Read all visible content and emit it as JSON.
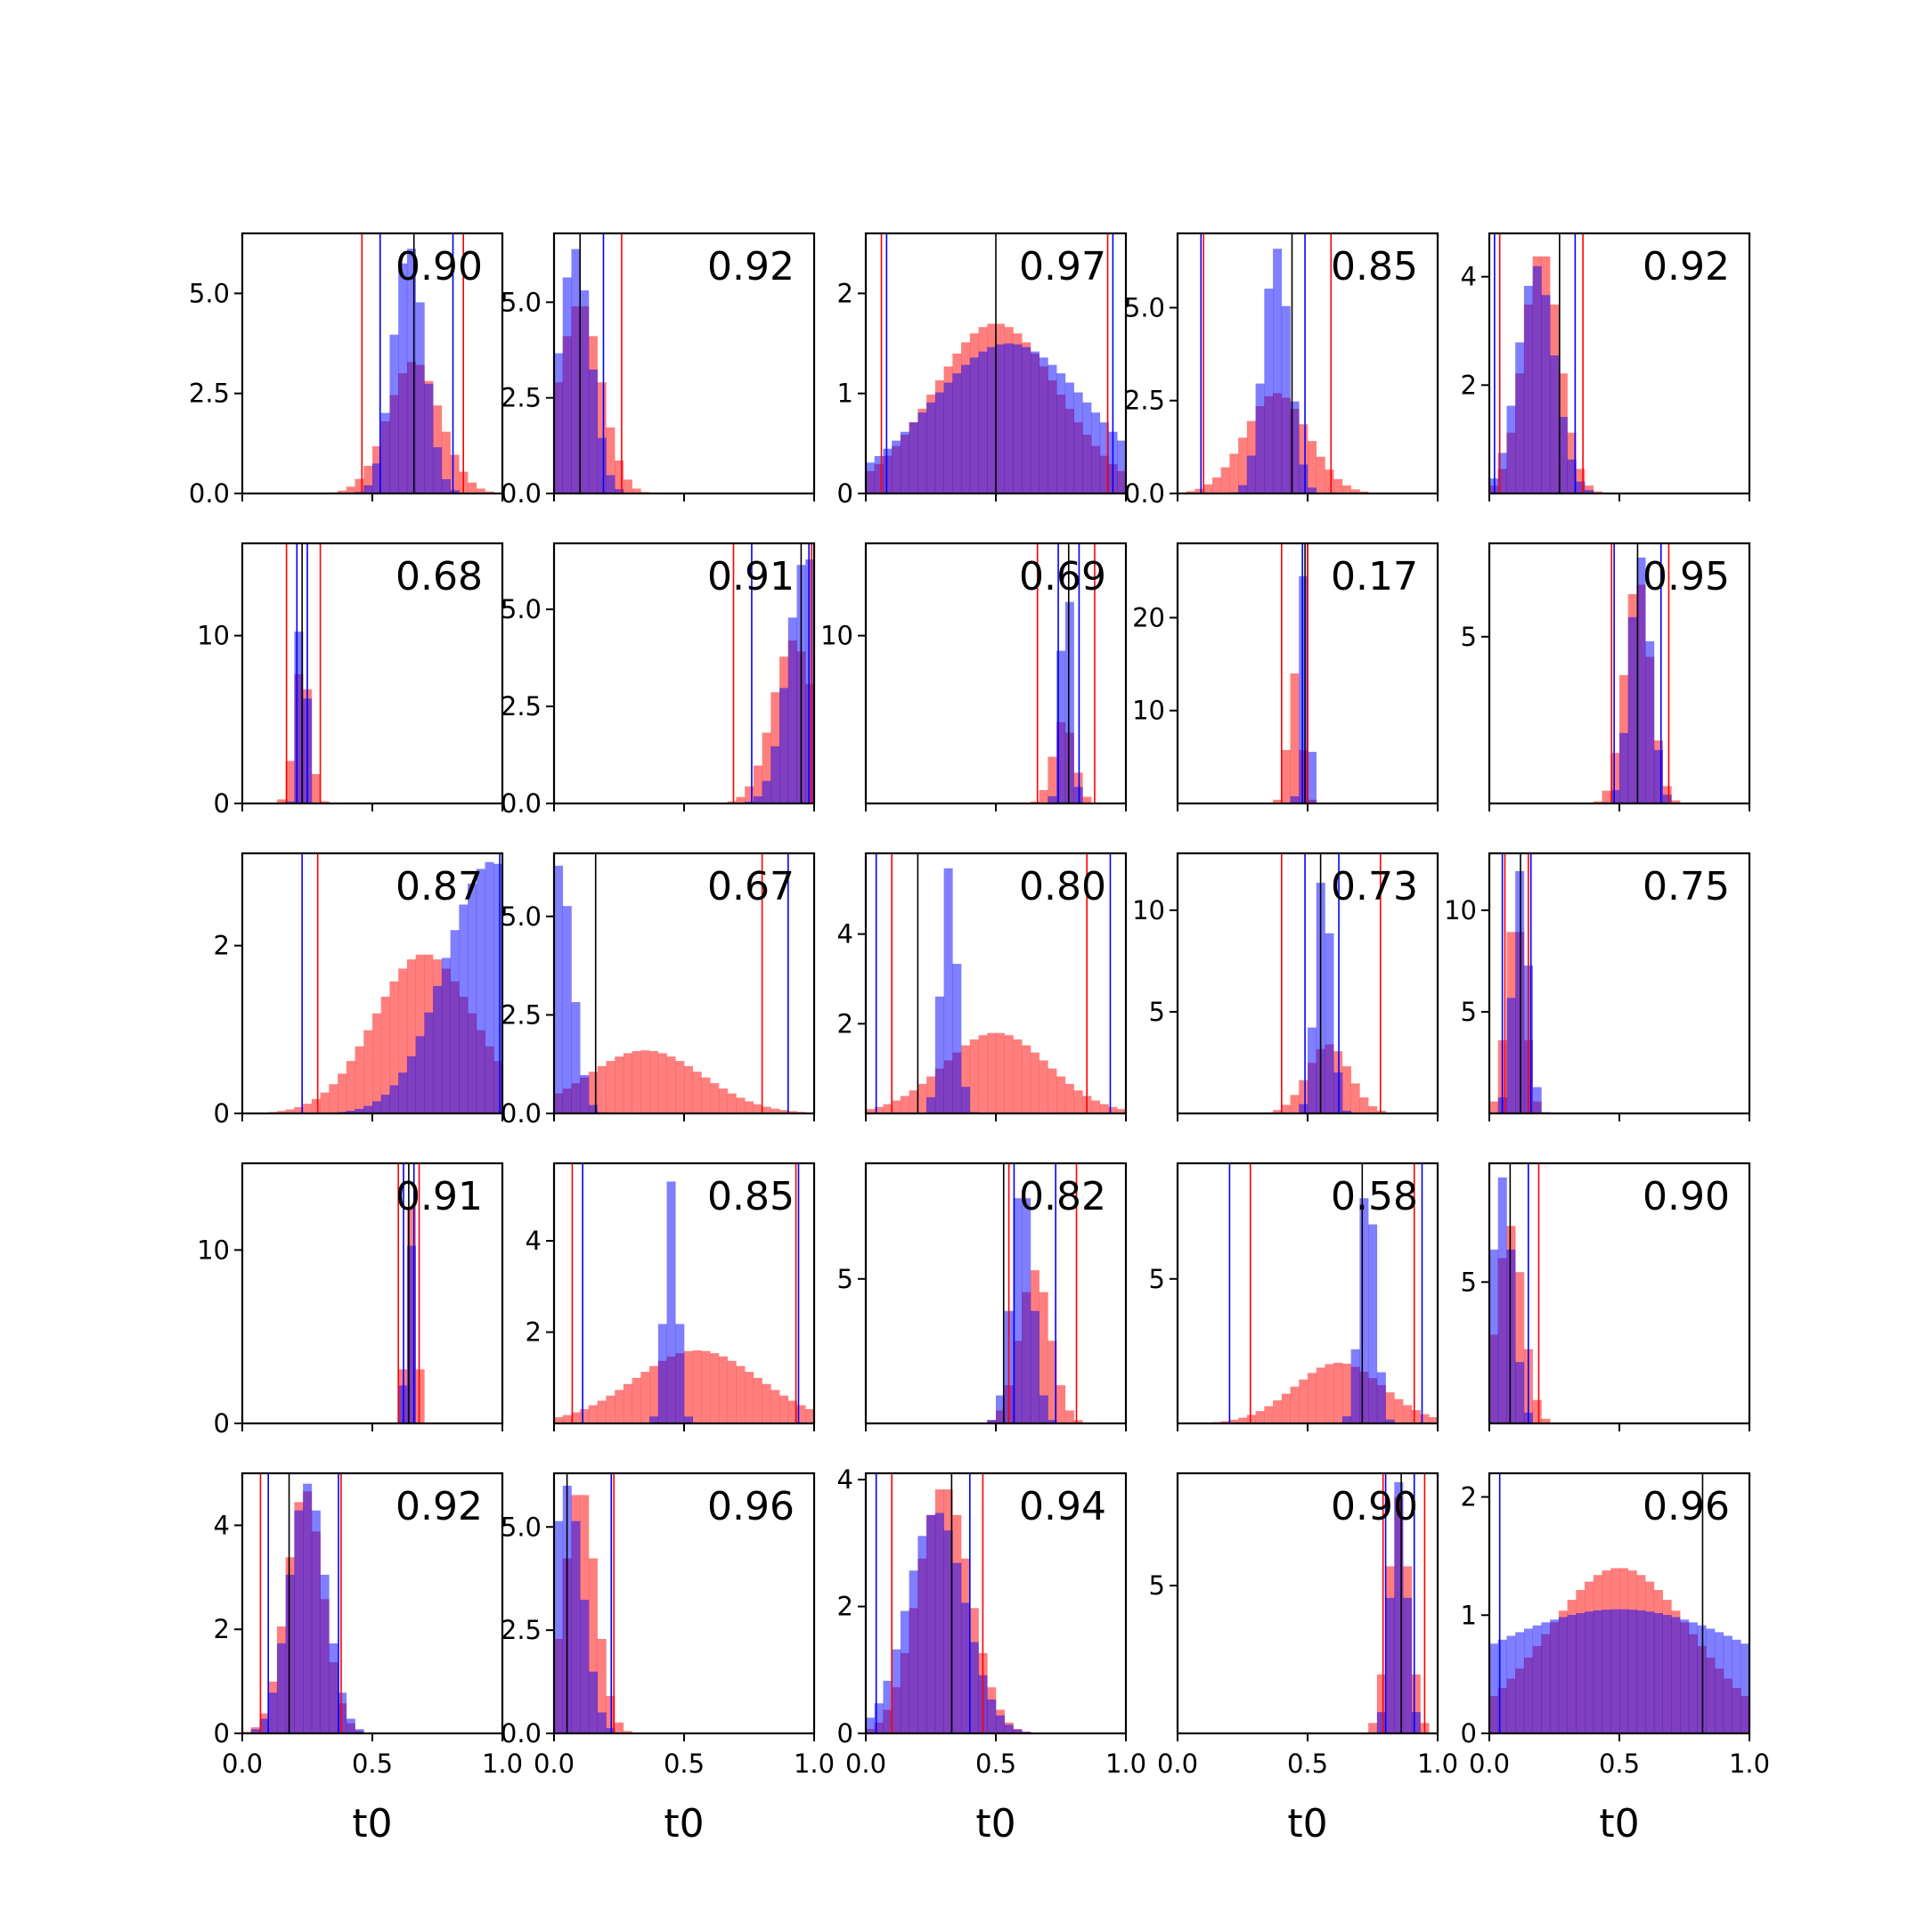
{
  "colors": {
    "series_a": "#0000ff",
    "series_b": "#ff0000",
    "marker": "#000000",
    "axes": "#000000"
  },
  "chart_data": {
    "type": "bar",
    "layout": "5x5 grid of overlaid histograms",
    "xlabel": "t0",
    "xlim": [
      0,
      1
    ],
    "xticks": [
      "0.0",
      "0.5",
      "1.0"
    ],
    "series_names": [
      "blue",
      "red"
    ],
    "panels": [
      {
        "score": "0.90",
        "ylim": [
          0,
          6.5
        ],
        "yticks": [
          "0.0",
          "2.5",
          "5.0"
        ],
        "blue_peak": 0.64,
        "blue_width": 0.06,
        "blue_height": 6.2,
        "red_peak": 0.66,
        "red_width": 0.1,
        "red_height": 3.3,
        "vlines": {
          "blue": [
            0.53,
            0.81
          ],
          "red": [
            0.46,
            0.85
          ],
          "black": [
            0.66
          ]
        }
      },
      {
        "score": "0.92",
        "ylim": [
          0,
          6.8
        ],
        "yticks": [
          "0.0",
          "2.5",
          "5.0"
        ],
        "blue_peak": 0.08,
        "blue_width": 0.06,
        "blue_height": 6.4,
        "red_peak": 0.1,
        "red_width": 0.08,
        "red_height": 5.0,
        "vlines": {
          "blue": [
            0.0,
            0.19
          ],
          "red": [
            0.0,
            0.26
          ],
          "black": [
            0.1
          ]
        }
      },
      {
        "score": "0.97",
        "ylim": [
          0,
          2.6
        ],
        "yticks": [
          "0",
          "1",
          "2"
        ],
        "blue_peak": 0.55,
        "blue_width": 0.3,
        "blue_height": 1.5,
        "red_peak": 0.5,
        "red_width": 0.24,
        "red_height": 1.7,
        "vlines": {
          "blue": [
            0.08,
            0.95
          ],
          "red": [
            0.06,
            0.93
          ],
          "black": [
            0.5
          ]
        }
      },
      {
        "score": "0.85",
        "ylim": [
          0,
          7.0
        ],
        "yticks": [
          "0.0",
          "2.5",
          "5.0"
        ],
        "blue_peak": 0.38,
        "blue_width": 0.05,
        "blue_height": 6.6,
        "red_peak": 0.38,
        "red_width": 0.12,
        "red_height": 2.7,
        "vlines": {
          "blue": [
            0.09,
            0.49
          ],
          "red": [
            0.1,
            0.59
          ],
          "black": [
            0.44
          ]
        }
      },
      {
        "score": "0.92",
        "ylim": [
          0,
          4.8
        ],
        "yticks": [
          "2",
          "4"
        ],
        "blue_peak": 0.18,
        "blue_width": 0.07,
        "blue_height": 4.2,
        "red_peak": 0.2,
        "red_width": 0.07,
        "red_height": 4.5,
        "vlines": {
          "blue": [
            0.02,
            0.33
          ],
          "red": [
            0.04,
            0.36
          ],
          "black": [
            0.27
          ]
        }
      },
      {
        "score": "0.68",
        "ylim": [
          0,
          15.5
        ],
        "yticks": [
          "0",
          "10"
        ],
        "blue_peak": 0.23,
        "blue_width": 0.015,
        "blue_height": 15.2,
        "red_peak": 0.23,
        "red_width": 0.03,
        "red_height": 8.5,
        "vlines": {
          "blue": [
            0.21,
            0.25
          ],
          "red": [
            0.17,
            0.3
          ],
          "black": [
            0.23
          ]
        }
      },
      {
        "score": "0.91",
        "ylim": [
          0,
          6.7
        ],
        "yticks": [
          "0.0",
          "2.5",
          "5.0"
        ],
        "blue_peak": 0.97,
        "blue_width": 0.07,
        "blue_height": 6.4,
        "red_peak": 0.92,
        "red_width": 0.08,
        "red_height": 4.2,
        "vlines": {
          "blue": [
            0.76,
            0.98
          ],
          "red": [
            0.69,
            0.99
          ],
          "black": [
            0.95
          ]
        }
      },
      {
        "score": "0.69",
        "ylim": [
          0,
          15.5
        ],
        "yticks": [
          "10"
        ],
        "blue_peak": 0.77,
        "blue_width": 0.02,
        "blue_height": 15.0,
        "red_peak": 0.76,
        "red_width": 0.04,
        "red_height": 5.0,
        "vlines": {
          "blue": [
            0.74,
            0.82
          ],
          "red": [
            0.66,
            0.88
          ],
          "black": [
            0.78
          ]
        }
      },
      {
        "score": "0.17",
        "ylim": [
          0,
          28
        ],
        "yticks": [
          "10",
          "20"
        ],
        "blue_peak": 0.49,
        "blue_width": 0.015,
        "blue_height": 27,
        "red_peak": 0.45,
        "red_width": 0.025,
        "red_height": 14,
        "vlines": {
          "blue": [
            0.48,
            0.5
          ],
          "red": [
            0.4,
            0.5
          ],
          "black": [
            0.49
          ]
        }
      },
      {
        "score": "0.95",
        "ylim": [
          0,
          7.8
        ],
        "yticks": [
          "5"
        ],
        "blue_peak": 0.58,
        "blue_width": 0.04,
        "blue_height": 7.4,
        "red_peak": 0.57,
        "red_width": 0.05,
        "red_height": 6.8,
        "vlines": {
          "blue": [
            0.48,
            0.66
          ],
          "red": [
            0.47,
            0.69
          ],
          "black": [
            0.57
          ]
        }
      },
      {
        "score": "0.87",
        "ylim": [
          0,
          3.1
        ],
        "yticks": [
          "0",
          "2"
        ],
        "blue_peak": 0.96,
        "blue_width": 0.18,
        "blue_height": 3.0,
        "red_peak": 0.7,
        "red_width": 0.19,
        "red_height": 1.9,
        "vlines": {
          "blue": [
            0.23,
            0.99
          ],
          "red": [
            0.29,
            1.0
          ],
          "black": []
        }
      },
      {
        "score": "0.67",
        "ylim": [
          0,
          6.6
        ],
        "yticks": [
          "0.0",
          "2.5",
          "5.0"
        ],
        "blue_peak": 0.02,
        "blue_width": 0.05,
        "blue_height": 6.3,
        "red_peak": 0.35,
        "red_width": 0.22,
        "red_height": 1.6,
        "vlines": {
          "blue": [
            0.0,
            0.9
          ],
          "red": [
            0.0,
            0.8
          ],
          "black": [
            0.16
          ]
        }
      },
      {
        "score": "0.80",
        "ylim": [
          0,
          5.8
        ],
        "yticks": [
          "2",
          "4"
        ],
        "blue_peak": 0.32,
        "blue_width": 0.03,
        "blue_height": 5.5,
        "red_peak": 0.5,
        "red_width": 0.2,
        "red_height": 1.8,
        "vlines": {
          "blue": [
            0.04,
            0.94
          ],
          "red": [
            0.1,
            0.85
          ],
          "black": [
            0.2
          ]
        }
      },
      {
        "score": "0.73",
        "ylim": [
          0,
          12.8
        ],
        "yticks": [
          "5",
          "10"
        ],
        "blue_peak": 0.56,
        "blue_width": 0.03,
        "blue_height": 12.0,
        "red_peak": 0.58,
        "red_width": 0.08,
        "red_height": 3.4,
        "vlines": {
          "blue": [
            0.49,
            0.62
          ],
          "red": [
            0.4,
            0.78
          ],
          "black": [
            0.55
          ]
        }
      },
      {
        "score": "0.75",
        "ylim": [
          0,
          12.8
        ],
        "yticks": [
          "5",
          "10"
        ],
        "blue_peak": 0.12,
        "blue_width": 0.03,
        "blue_height": 12.0,
        "red_peak": 0.1,
        "red_width": 0.035,
        "red_height": 10.0,
        "vlines": {
          "blue": [
            0.05,
            0.16
          ],
          "red": [
            0.06,
            0.15
          ],
          "black": [
            0.12
          ]
        }
      },
      {
        "score": "0.91",
        "ylim": [
          0,
          15
        ],
        "yticks": [
          "0",
          "10"
        ],
        "blue_peak": 0.64,
        "blue_width": 0.012,
        "blue_height": 14.5,
        "red_peak": 0.65,
        "red_width": 0.02,
        "red_height": 12.5,
        "vlines": {
          "blue": [
            0.62,
            0.66
          ],
          "red": [
            0.6,
            0.68
          ],
          "black": [
            0.64
          ]
        }
      },
      {
        "score": "0.85",
        "ylim": [
          0,
          5.7
        ],
        "yticks": [
          "2",
          "4"
        ],
        "blue_peak": 0.45,
        "blue_width": 0.025,
        "blue_height": 5.3,
        "red_peak": 0.55,
        "red_width": 0.24,
        "red_height": 1.6,
        "vlines": {
          "blue": [
            0.11,
            0.94
          ],
          "red": [
            0.07,
            0.93
          ],
          "black": []
        }
      },
      {
        "score": "0.82",
        "ylim": [
          0,
          9.0
        ],
        "yticks": [
          "5"
        ],
        "blue_peak": 0.6,
        "blue_width": 0.04,
        "blue_height": 8.5,
        "red_peak": 0.65,
        "red_width": 0.06,
        "red_height": 5.3,
        "vlines": {
          "blue": [
            0.57,
            0.73
          ],
          "red": [
            0.55,
            0.81
          ],
          "black": [
            0.53
          ]
        }
      },
      {
        "score": "0.58",
        "ylim": [
          0,
          9.0
        ],
        "yticks": [
          "5"
        ],
        "blue_peak": 0.73,
        "blue_width": 0.03,
        "blue_height": 8.6,
        "red_peak": 0.62,
        "red_width": 0.17,
        "red_height": 2.1,
        "vlines": {
          "blue": [
            0.2,
            0.94
          ],
          "red": [
            0.28,
            0.91
          ],
          "black": [
            0.71
          ]
        }
      },
      {
        "score": "0.90",
        "ylim": [
          0,
          9.2
        ],
        "yticks": [
          "5"
        ],
        "blue_peak": 0.05,
        "blue_width": 0.04,
        "blue_height": 8.7,
        "red_peak": 0.08,
        "red_width": 0.05,
        "red_height": 7.0,
        "vlines": {
          "blue": [
            0.0,
            0.15
          ],
          "red": [
            0.0,
            0.19
          ],
          "black": [
            0.08
          ]
        }
      },
      {
        "score": "0.92",
        "ylim": [
          0,
          5.0
        ],
        "yticks": [
          "0",
          "2",
          "4"
        ],
        "blue_peak": 0.25,
        "blue_width": 0.07,
        "blue_height": 4.8,
        "red_peak": 0.24,
        "red_width": 0.07,
        "red_height": 4.7,
        "vlines": {
          "blue": [
            0.1,
            0.37
          ],
          "red": [
            0.07,
            0.38
          ],
          "black": [
            0.18
          ]
        }
      },
      {
        "score": "0.96",
        "ylim": [
          0,
          6.3
        ],
        "yticks": [
          "0.0",
          "2.5",
          "5.0"
        ],
        "blue_peak": 0.05,
        "blue_width": 0.06,
        "blue_height": 6.0,
        "red_peak": 0.1,
        "red_width": 0.06,
        "red_height": 6.0,
        "vlines": {
          "blue": [
            0.0,
            0.22
          ],
          "red": [
            0.0,
            0.23
          ],
          "black": [
            0.05
          ]
        }
      },
      {
        "score": "0.94",
        "ylim": [
          0,
          4.1
        ],
        "yticks": [
          "0",
          "2",
          "4"
        ],
        "blue_peak": 0.27,
        "blue_width": 0.11,
        "blue_height": 3.5,
        "red_peak": 0.3,
        "red_width": 0.1,
        "red_height": 3.9,
        "vlines": {
          "blue": [
            0.04,
            0.4
          ],
          "red": [
            0.1,
            0.45
          ],
          "black": [
            0.33
          ]
        }
      },
      {
        "score": "0.90",
        "ylim": [
          0,
          8.8
        ],
        "yticks": [
          "5"
        ],
        "blue_peak": 0.85,
        "blue_width": 0.03,
        "blue_height": 8.5,
        "red_peak": 0.85,
        "red_width": 0.04,
        "red_height": 8.0,
        "vlines": {
          "blue": [
            0.8,
            0.91
          ],
          "red": [
            0.79,
            0.95
          ],
          "black": [
            0.86
          ]
        }
      },
      {
        "score": "0.96",
        "ylim": [
          0,
          2.2
        ],
        "yticks": [
          "0",
          "1",
          "2"
        ],
        "blue_peak": 0.5,
        "blue_width": 0.6,
        "blue_height": 1.05,
        "red_peak": 0.5,
        "red_width": 0.28,
        "red_height": 1.4,
        "vlines": {
          "blue": [
            0.04,
            1.0
          ],
          "red": [
            1.0
          ],
          "black": [
            0.82
          ]
        }
      }
    ]
  }
}
